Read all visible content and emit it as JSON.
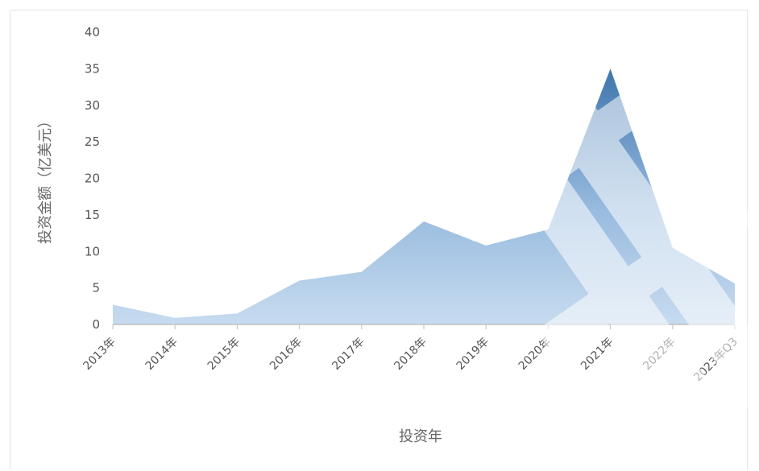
{
  "chart_data": {
    "type": "area",
    "categories": [
      "2013年",
      "2014年",
      "2015年",
      "2016年",
      "2017年",
      "2018年",
      "2019年",
      "2020年",
      "2021年",
      "2022年",
      "2023年Q3"
    ],
    "values": [
      2.7,
      0.9,
      1.5,
      6.0,
      7.2,
      14.1,
      10.8,
      13.0,
      35.0,
      10.5,
      5.6
    ],
    "title": "",
    "xlabel": "投资年",
    "ylabel": "投资金额（亿美元）",
    "ylim": [
      0,
      40
    ],
    "yticks": [
      "0",
      "5",
      "10",
      "15",
      "20",
      "25",
      "30",
      "35",
      "40"
    ],
    "grid": false,
    "legend": "none",
    "colors": {
      "fill_light": "#b7d1ea",
      "fill_dark": "#2e6aa6"
    }
  }
}
